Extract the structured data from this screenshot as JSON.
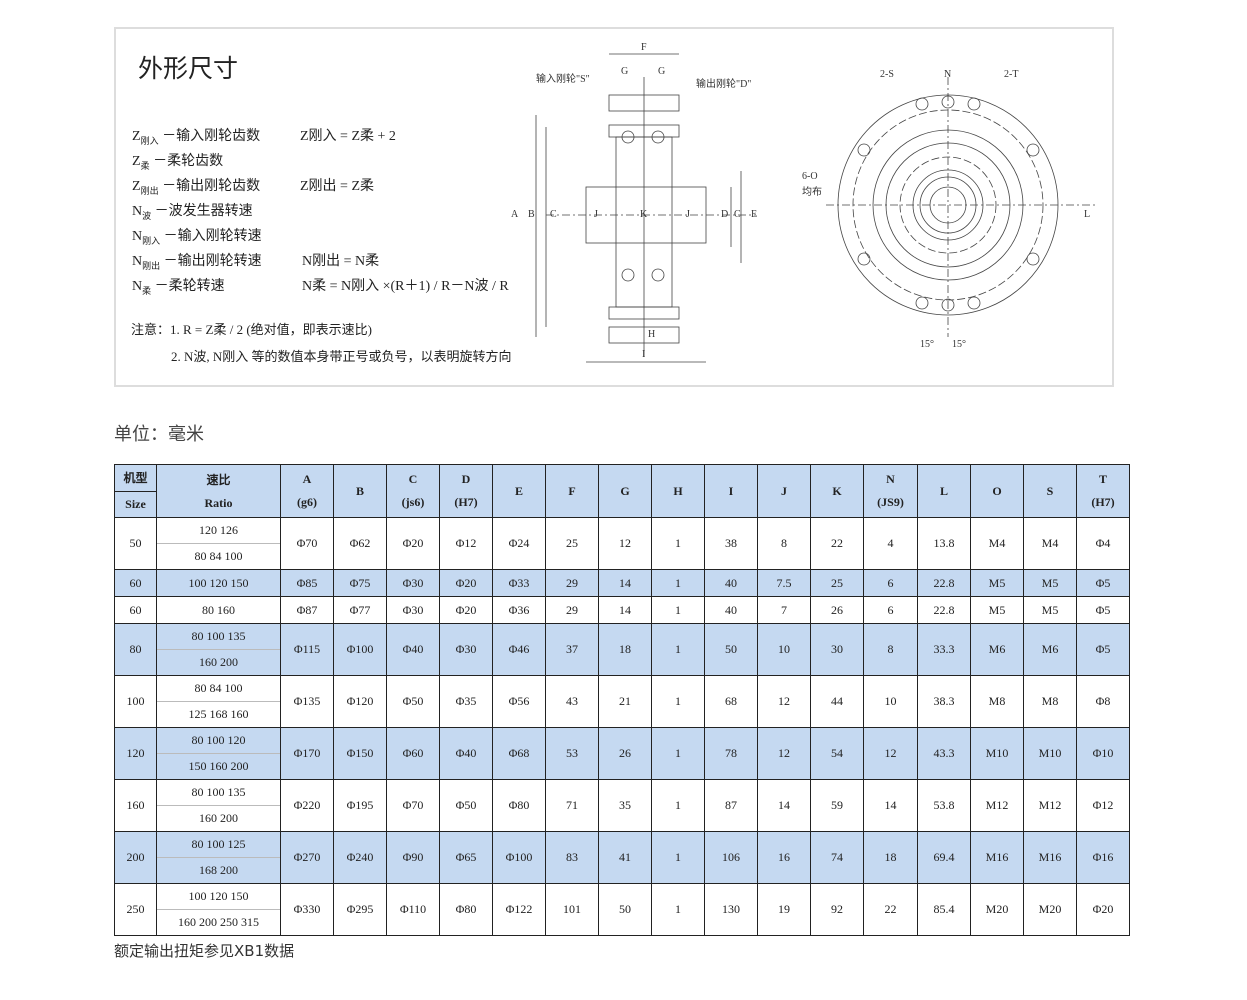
{
  "panel": {
    "title": "外形尺寸",
    "definitions": [
      {
        "sym": "Z",
        "sub": "刚入",
        "text": "－输入刚轮齿数",
        "formula": "Z刚入 = Z柔 + 2"
      },
      {
        "sym": "Z",
        "sub": "柔",
        "text": "－柔轮齿数",
        "formula": ""
      },
      {
        "sym": "Z",
        "sub": "刚出",
        "text": "－输出刚轮齿数",
        "formula": "Z刚出 = Z柔"
      },
      {
        "sym": "N",
        "sub": "波",
        "text": "－波发生器转速",
        "formula": ""
      },
      {
        "sym": "N",
        "sub": "刚入",
        "text": "－输入刚轮转速",
        "formula": ""
      },
      {
        "sym": "N",
        "sub": "刚出",
        "text": "－输出刚轮转速",
        "formula": "N刚出 = N柔"
      },
      {
        "sym": "N",
        "sub": "柔",
        "text": "－柔轮转速",
        "formula": "N柔 = N刚入 ×(R＋1) / R－N波 / R"
      }
    ],
    "note_label": "注意：",
    "note1": "1.  R = Z柔 / 2 (绝对值，即表示速比)",
    "note2": "2.  N波, N刚入 等的数值本身带正号或负号，以表明旋转方向",
    "drawing_labels": {
      "input": "输入刚轮\"S\"",
      "output": "输出刚轮\"D\"",
      "F": "F",
      "G": "G",
      "H": "H",
      "I": "I",
      "A": "A",
      "B": "B",
      "C": "C",
      "D": "D",
      "E": "E",
      "J": "J",
      "K": "K",
      "L": "L",
      "N": "N",
      "S2": "2-S",
      "T2": "2-T",
      "O6": "6-O",
      "even": "均布",
      "deg": "15°"
    }
  },
  "unit": "单位：毫米",
  "table": {
    "headers": [
      [
        "机型",
        "Size"
      ],
      [
        "速比",
        "Ratio"
      ],
      [
        "A",
        "(g6)"
      ],
      [
        "B",
        ""
      ],
      [
        "C",
        "(js6)"
      ],
      [
        "D",
        "(H7)"
      ],
      [
        "E",
        ""
      ],
      [
        "F",
        ""
      ],
      [
        "G",
        ""
      ],
      [
        "H",
        ""
      ],
      [
        "I",
        ""
      ],
      [
        "J",
        ""
      ],
      [
        "K",
        ""
      ],
      [
        "N",
        "(JS9)"
      ],
      [
        "L",
        ""
      ],
      [
        "O",
        ""
      ],
      [
        "S",
        ""
      ],
      [
        "T",
        "(H7)"
      ]
    ],
    "rows": [
      {
        "size": "50",
        "ratio": [
          "120 126",
          "80  84  100"
        ],
        "vals": [
          "Φ70",
          "Φ62",
          "Φ20",
          "Φ12",
          "Φ24",
          "25",
          "12",
          "1",
          "38",
          "8",
          "22",
          "4",
          "13.8",
          "M4",
          "M4",
          "Φ4"
        ]
      },
      {
        "size": "60",
        "ratio": [
          "100  120  150"
        ],
        "vals": [
          "Φ85",
          "Φ75",
          "Φ30",
          "Φ20",
          "Φ33",
          "29",
          "14",
          "1",
          "40",
          "7.5",
          "25",
          "6",
          "22.8",
          "M5",
          "M5",
          "Φ5"
        ]
      },
      {
        "size": "60",
        "ratio": [
          "80  160"
        ],
        "vals": [
          "Φ87",
          "Φ77",
          "Φ30",
          "Φ20",
          "Φ36",
          "29",
          "14",
          "1",
          "40",
          "7",
          "26",
          "6",
          "22.8",
          "M5",
          "M5",
          "Φ5"
        ]
      },
      {
        "size": "80",
        "ratio": [
          "80  100  135",
          "160  200"
        ],
        "vals": [
          "Φ115",
          "Φ100",
          "Φ40",
          "Φ30",
          "Φ46",
          "37",
          "18",
          "1",
          "50",
          "10",
          "30",
          "8",
          "33.3",
          "M6",
          "M6",
          "Φ5"
        ]
      },
      {
        "size": "100",
        "ratio": [
          "80  84  100",
          "125  168  160"
        ],
        "vals": [
          "Φ135",
          "Φ120",
          "Φ50",
          "Φ35",
          "Φ56",
          "43",
          "21",
          "1",
          "68",
          "12",
          "44",
          "10",
          "38.3",
          "M8",
          "M8",
          "Φ8"
        ]
      },
      {
        "size": "120",
        "ratio": [
          "80  100  120",
          "150  160  200"
        ],
        "vals": [
          "Φ170",
          "Φ150",
          "Φ60",
          "Φ40",
          "Φ68",
          "53",
          "26",
          "1",
          "78",
          "12",
          "54",
          "12",
          "43.3",
          "M10",
          "M10",
          "Φ10"
        ]
      },
      {
        "size": "160",
        "ratio": [
          "80  100  135",
          "160  200"
        ],
        "vals": [
          "Φ220",
          "Φ195",
          "Φ70",
          "Φ50",
          "Φ80",
          "71",
          "35",
          "1",
          "87",
          "14",
          "59",
          "14",
          "53.8",
          "M12",
          "M12",
          "Φ12"
        ]
      },
      {
        "size": "200",
        "ratio": [
          "80  100  125",
          "168  200"
        ],
        "vals": [
          "Φ270",
          "Φ240",
          "Φ90",
          "Φ65",
          "Φ100",
          "83",
          "41",
          "1",
          "106",
          "16",
          "74",
          "18",
          "69.4",
          "M16",
          "M16",
          "Φ16"
        ]
      },
      {
        "size": "250",
        "ratio": [
          "100  120  150",
          "160  200  250  315"
        ],
        "vals": [
          "Φ330",
          "Φ295",
          "Φ110",
          "Φ80",
          "Φ122",
          "101",
          "50",
          "1",
          "130",
          "19",
          "92",
          "22",
          "85.4",
          "M20",
          "M20",
          "Φ20"
        ]
      }
    ]
  },
  "footnote": "额定输出扭矩参见XB1数据",
  "colors": {
    "header_bg": "#c5d9f1",
    "border": "#222222"
  }
}
